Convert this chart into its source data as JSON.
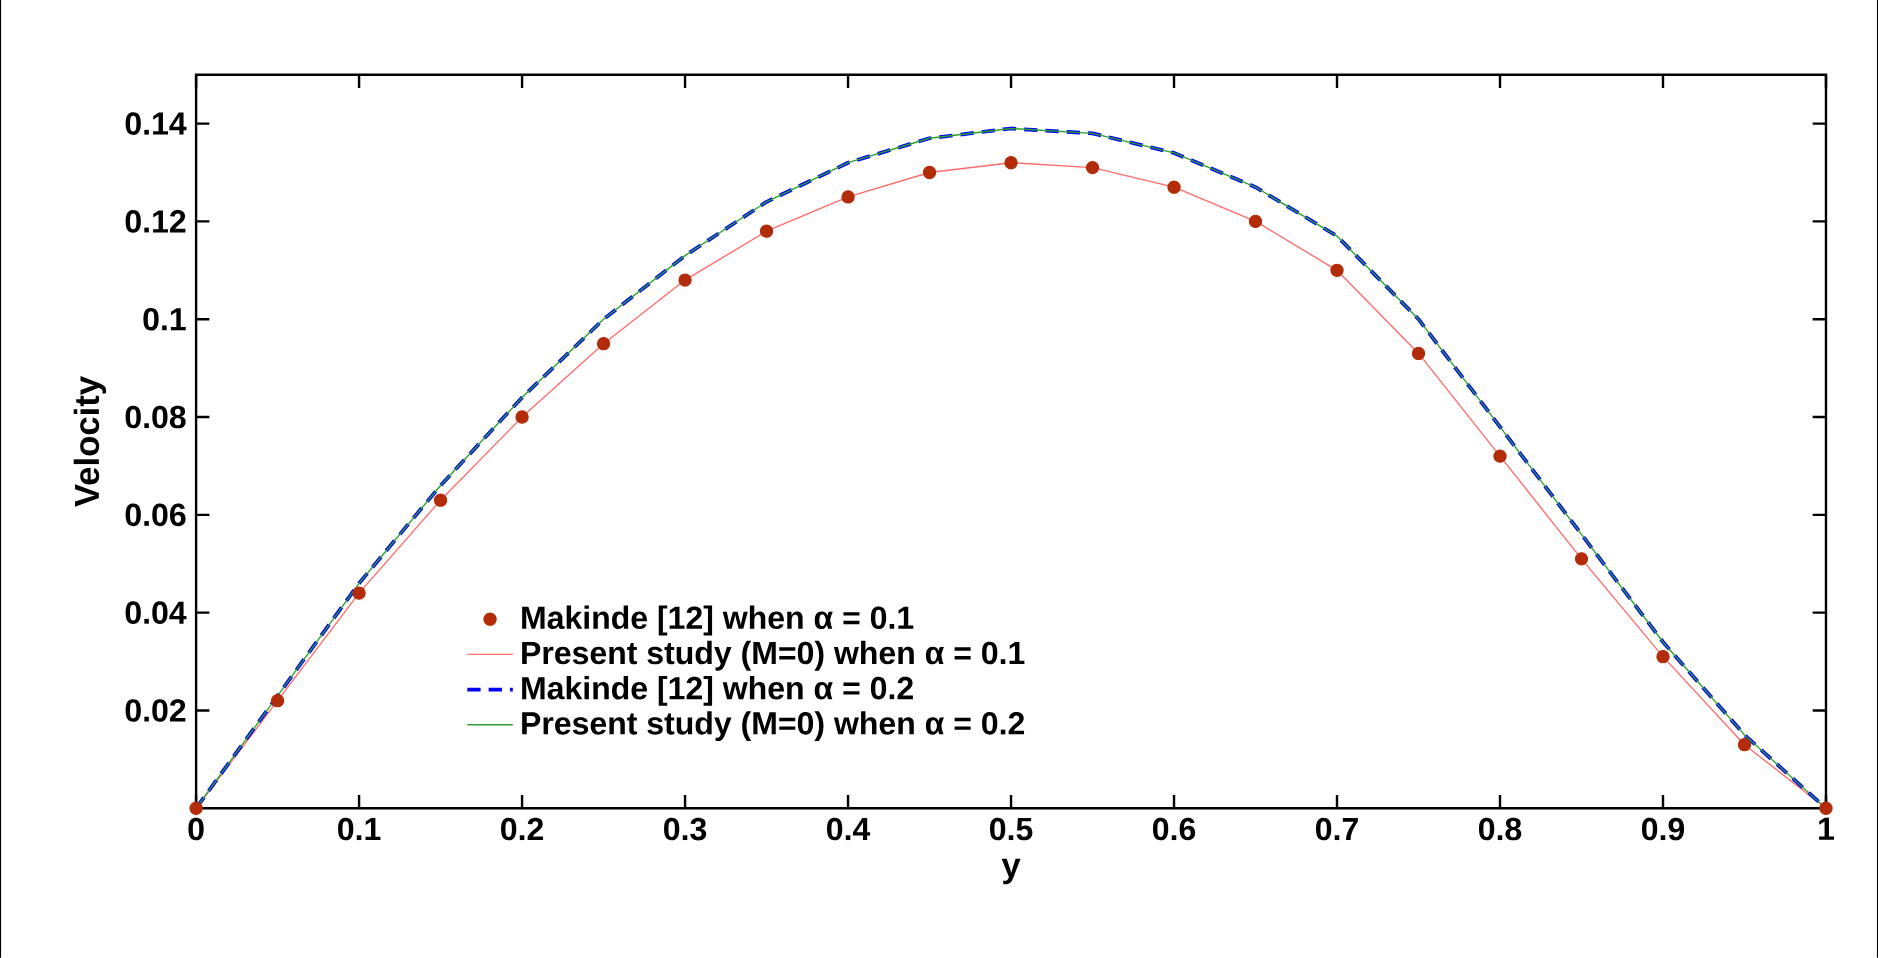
{
  "chart_data": {
    "type": "line",
    "xlabel": "y",
    "ylabel": "Velocity",
    "xlim": [
      0,
      1
    ],
    "ylim": [
      0,
      0.15
    ],
    "xticks": [
      0,
      0.1,
      0.2,
      0.3,
      0.4,
      0.5,
      0.6,
      0.7,
      0.8,
      0.9,
      1
    ],
    "yticks": [
      0.02,
      0.04,
      0.06,
      0.08,
      0.1,
      0.12,
      0.14
    ],
    "legend": "bottom left",
    "series": [
      {
        "name": "Makinde [12] when α = 0.1",
        "type": "scatter",
        "marker": "circle",
        "color": "#b22c0a",
        "x": [
          0,
          0.05,
          0.1,
          0.15,
          0.2,
          0.25,
          0.3,
          0.35,
          0.4,
          0.45,
          0.5,
          0.55,
          0.6,
          0.65,
          0.7,
          0.75,
          0.8,
          0.85,
          0.9,
          0.95,
          1
        ],
        "values": [
          0,
          0.022,
          0.044,
          0.063,
          0.08,
          0.095,
          0.108,
          0.118,
          0.125,
          0.13,
          0.132,
          0.131,
          0.127,
          0.12,
          0.11,
          0.093,
          0.072,
          0.051,
          0.031,
          0.013,
          0
        ]
      },
      {
        "name": "Present study (M=0) when α = 0.1",
        "line_style": "solid",
        "color": "#ff6b6b",
        "x": [
          0,
          0.05,
          0.1,
          0.15,
          0.2,
          0.25,
          0.3,
          0.35,
          0.4,
          0.45,
          0.5,
          0.55,
          0.6,
          0.65,
          0.7,
          0.75,
          0.8,
          0.85,
          0.9,
          0.95,
          1
        ],
        "values": [
          0,
          0.022,
          0.044,
          0.063,
          0.08,
          0.095,
          0.108,
          0.118,
          0.125,
          0.13,
          0.132,
          0.131,
          0.127,
          0.12,
          0.11,
          0.093,
          0.072,
          0.051,
          0.031,
          0.013,
          0
        ]
      },
      {
        "name": "Makinde [12] when α = 0.2",
        "line_style": "dashed",
        "color": "#0000ff",
        "x": [
          0,
          0.05,
          0.1,
          0.15,
          0.2,
          0.25,
          0.3,
          0.35,
          0.4,
          0.45,
          0.5,
          0.55,
          0.6,
          0.65,
          0.7,
          0.75,
          0.8,
          0.85,
          0.9,
          0.95,
          1
        ],
        "values": [
          0,
          0.023,
          0.046,
          0.066,
          0.084,
          0.1,
          0.113,
          0.124,
          0.132,
          0.137,
          0.139,
          0.138,
          0.134,
          0.127,
          0.117,
          0.1,
          0.078,
          0.056,
          0.034,
          0.015,
          0
        ]
      },
      {
        "name": "Present study (M=0) when α = 0.2",
        "line_style": "solid",
        "color": "#2ca02c",
        "x": [
          0,
          0.05,
          0.1,
          0.15,
          0.2,
          0.25,
          0.3,
          0.35,
          0.4,
          0.45,
          0.5,
          0.55,
          0.6,
          0.65,
          0.7,
          0.75,
          0.8,
          0.85,
          0.9,
          0.95,
          1
        ],
        "values": [
          0,
          0.023,
          0.046,
          0.066,
          0.084,
          0.1,
          0.113,
          0.124,
          0.132,
          0.137,
          0.139,
          0.138,
          0.134,
          0.127,
          0.117,
          0.1,
          0.078,
          0.056,
          0.034,
          0.015,
          0
        ]
      }
    ]
  }
}
